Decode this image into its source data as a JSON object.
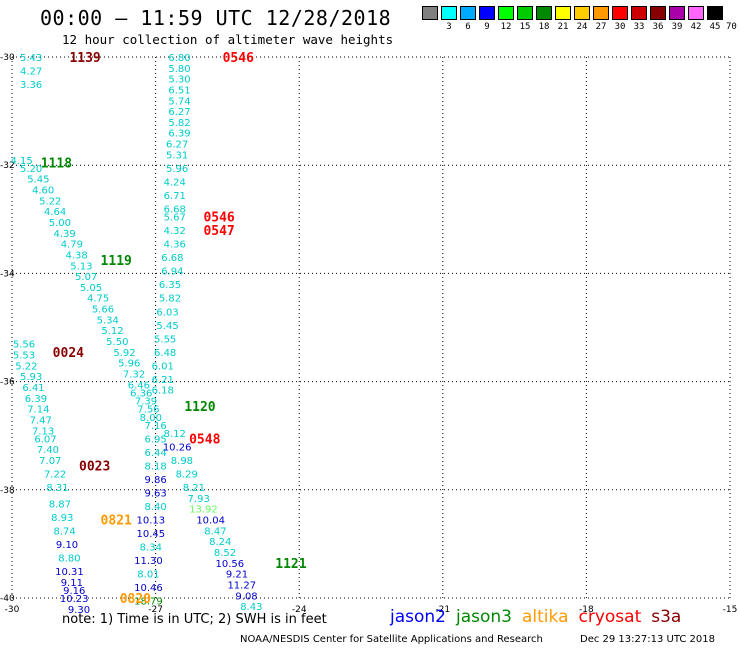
{
  "header": {
    "title": "00:00 – 11:59 UTC 12/28/2018",
    "subtitle": "12 hour collection of altimeter wave heights"
  },
  "color_scale": {
    "labels": [
      "3",
      "6",
      "9",
      "12",
      "15",
      "18",
      "21",
      "24",
      "27",
      "30",
      "33",
      "36",
      "39",
      "42",
      "45",
      "70 (ft)"
    ],
    "colors": [
      "#808080",
      "#00ffff",
      "#00aaff",
      "#0000ff",
      "#00ff00",
      "#00cc00",
      "#008800",
      "#ffff00",
      "#ffcc00",
      "#ff9900",
      "#ff0000",
      "#cc0000",
      "#880000",
      "#aa00aa",
      "#ff66ff",
      "#000000"
    ]
  },
  "footer": {
    "note": "note:  1) Time is in UTC;  2) SWH is in feet",
    "satellites": [
      {
        "name": "jason2",
        "color": "#0000ff"
      },
      {
        "name": "jason3",
        "color": "#008800"
      },
      {
        "name": "altika",
        "color": "#ff9900"
      },
      {
        "name": "cryosat",
        "color": "#ff0000"
      },
      {
        "name": "s3a",
        "color": "#880000"
      }
    ],
    "credit": "NOAA/NESDIS Center for Satellite Applications and Research",
    "timestamp": "Dec 29 13:27:13 UTC 2018"
  },
  "chart_data": {
    "type": "scatter",
    "title": "00:00 – 11:59 UTC 12/28/2018",
    "subtitle": "12 hour collection of altimeter wave heights",
    "xlim": [
      -30,
      -15
    ],
    "ylim": [
      -40,
      -30
    ],
    "x_ticks": [
      "-30",
      "-27",
      "-24",
      "-21",
      "-18",
      "-15"
    ],
    "y_ticks": [
      "-30",
      "-32",
      "-34",
      "-36",
      "-38",
      "-40"
    ],
    "grid": true,
    "tracks": [
      {
        "name": "track-a",
        "points": [
          {
            "lon": -29.6,
            "lat": -30.0,
            "v": "5.43",
            "c": "#00cccc"
          },
          {
            "lon": -29.6,
            "lat": -30.25,
            "v": "4.27",
            "c": "#00cccc"
          },
          {
            "lon": -29.6,
            "lat": -30.5,
            "v": "3.36",
            "c": "#00cccc"
          }
        ]
      },
      {
        "name": "track-b",
        "points": [
          {
            "lon": -29.8,
            "lat": -31.9,
            "v": "4.15",
            "c": "#00cccc"
          },
          {
            "lon": -29.6,
            "lat": -32.05,
            "v": "5.20",
            "c": "#00cccc"
          },
          {
            "lon": -29.45,
            "lat": -32.25,
            "v": "5.45",
            "c": "#00cccc"
          },
          {
            "lon": -29.35,
            "lat": -32.45,
            "v": "4.60",
            "c": "#00cccc"
          },
          {
            "lon": -29.2,
            "lat": -32.65,
            "v": "5.22",
            "c": "#00cccc"
          },
          {
            "lon": -29.1,
            "lat": -32.85,
            "v": "4.64",
            "c": "#00cccc"
          },
          {
            "lon": -29.0,
            "lat": -33.05,
            "v": "5.00",
            "c": "#00cccc"
          },
          {
            "lon": -28.9,
            "lat": -33.25,
            "v": "4.39",
            "c": "#00cccc"
          },
          {
            "lon": -28.75,
            "lat": -33.45,
            "v": "4.79",
            "c": "#00cccc"
          },
          {
            "lon": -28.65,
            "lat": -33.65,
            "v": "4.38",
            "c": "#00cccc"
          },
          {
            "lon": -28.55,
            "lat": -33.85,
            "v": "5.13",
            "c": "#00cccc"
          },
          {
            "lon": -28.45,
            "lat": -34.05,
            "v": "5.07",
            "c": "#00cccc"
          },
          {
            "lon": -28.35,
            "lat": -34.25,
            "v": "5.05",
            "c": "#00cccc"
          },
          {
            "lon": -28.2,
            "lat": -34.45,
            "v": "4.75",
            "c": "#00cccc"
          },
          {
            "lon": -28.1,
            "lat": -34.65,
            "v": "5.66",
            "c": "#00cccc"
          },
          {
            "lon": -28.0,
            "lat": -34.85,
            "v": "5.34",
            "c": "#00cccc"
          },
          {
            "lon": -27.9,
            "lat": -35.05,
            "v": "5.12",
            "c": "#00cccc"
          },
          {
            "lon": -27.8,
            "lat": -35.25,
            "v": "5.50",
            "c": "#00cccc"
          },
          {
            "lon": -27.65,
            "lat": -35.45,
            "v": "5.92",
            "c": "#00cccc"
          },
          {
            "lon": -27.55,
            "lat": -35.65,
            "v": "5.96",
            "c": "#00cccc"
          },
          {
            "lon": -27.45,
            "lat": -35.85,
            "v": "7.32",
            "c": "#00cccc"
          },
          {
            "lon": -27.35,
            "lat": -36.05,
            "v": "6.46",
            "c": "#00cccc"
          },
          {
            "lon": -27.3,
            "lat": -36.2,
            "v": "6.36",
            "c": "#00cccc"
          },
          {
            "lon": -27.2,
            "lat": -36.35,
            "v": "7.39",
            "c": "#00cccc"
          },
          {
            "lon": -27.15,
            "lat": -36.5,
            "v": "7.56",
            "c": "#00cccc"
          },
          {
            "lon": -27.1,
            "lat": -36.65,
            "v": "8.00",
            "c": "#00cccc"
          },
          {
            "lon": -27.0,
            "lat": -36.8,
            "v": "7.16",
            "c": "#00cccc"
          },
          {
            "lon": -27.0,
            "lat": -37.05,
            "v": "6.95",
            "c": "#00cccc"
          },
          {
            "lon": -27.0,
            "lat": -37.3,
            "v": "6.44",
            "c": "#00cccc"
          },
          {
            "lon": -27.0,
            "lat": -37.55,
            "v": "8.18",
            "c": "#00cccc"
          },
          {
            "lon": -27.0,
            "lat": -37.8,
            "v": "9.86",
            "c": "#0000cc"
          },
          {
            "lon": -27.0,
            "lat": -38.05,
            "v": "9.63",
            "c": "#0000cc"
          },
          {
            "lon": -27.0,
            "lat": -38.3,
            "v": "8.40",
            "c": "#00cccc"
          },
          {
            "lon": -27.1,
            "lat": -38.55,
            "v": "10.13",
            "c": "#0000cc"
          },
          {
            "lon": -27.1,
            "lat": -38.8,
            "v": "10.45",
            "c": "#0000cc"
          },
          {
            "lon": -27.1,
            "lat": -39.05,
            "v": "8.34",
            "c": "#00cccc"
          },
          {
            "lon": -27.15,
            "lat": -39.3,
            "v": "11.30",
            "c": "#0000cc"
          },
          {
            "lon": -27.15,
            "lat": -39.55,
            "v": "8.01",
            "c": "#00cccc"
          },
          {
            "lon": -27.15,
            "lat": -39.8,
            "v": "10.46",
            "c": "#0000cc"
          },
          {
            "lon": -27.15,
            "lat": -40.05,
            "v": "18.79",
            "c": "#008800"
          }
        ]
      },
      {
        "name": "track-c",
        "points": [
          {
            "lon": -26.5,
            "lat": -30.0,
            "v": "6.80",
            "c": "#00cccc"
          },
          {
            "lon": -26.5,
            "lat": -30.2,
            "v": "5.80",
            "c": "#00cccc"
          },
          {
            "lon": -26.5,
            "lat": -30.4,
            "v": "5.30",
            "c": "#00cccc"
          },
          {
            "lon": -26.5,
            "lat": -30.6,
            "v": "6.51",
            "c": "#00cccc"
          },
          {
            "lon": -26.5,
            "lat": -30.8,
            "v": "5.74",
            "c": "#00cccc"
          },
          {
            "lon": -26.5,
            "lat": -31.0,
            "v": "6.27",
            "c": "#00cccc"
          },
          {
            "lon": -26.5,
            "lat": -31.2,
            "v": "5.82",
            "c": "#00cccc"
          },
          {
            "lon": -26.5,
            "lat": -31.4,
            "v": "6.39",
            "c": "#00cccc"
          },
          {
            "lon": -26.55,
            "lat": -31.6,
            "v": "6.27",
            "c": "#00cccc"
          },
          {
            "lon": -26.55,
            "lat": -31.8,
            "v": "5.31",
            "c": "#00cccc"
          },
          {
            "lon": -26.55,
            "lat": -32.05,
            "v": "5.96",
            "c": "#00cccc"
          },
          {
            "lon": -26.6,
            "lat": -32.3,
            "v": "4.24",
            "c": "#00cccc"
          },
          {
            "lon": -26.6,
            "lat": -32.55,
            "v": "6.71",
            "c": "#00cccc"
          },
          {
            "lon": -26.6,
            "lat": -32.8,
            "v": "6.68",
            "c": "#00cccc"
          },
          {
            "lon": -26.6,
            "lat": -32.95,
            "v": "5.67",
            "c": "#00cccc"
          },
          {
            "lon": -26.6,
            "lat": -33.2,
            "v": "4.32",
            "c": "#00cccc"
          },
          {
            "lon": -26.6,
            "lat": -33.45,
            "v": "4.36",
            "c": "#00cccc"
          },
          {
            "lon": -26.65,
            "lat": -33.7,
            "v": "6.68",
            "c": "#00cccc"
          },
          {
            "lon": -26.65,
            "lat": -33.95,
            "v": "6.94",
            "c": "#00cccc"
          },
          {
            "lon": -26.7,
            "lat": -34.2,
            "v": "6.35",
            "c": "#00cccc"
          },
          {
            "lon": -26.7,
            "lat": -34.45,
            "v": "5.82",
            "c": "#00cccc"
          },
          {
            "lon": -26.75,
            "lat": -34.7,
            "v": "6.03",
            "c": "#00cccc"
          },
          {
            "lon": -26.75,
            "lat": -34.95,
            "v": "5.45",
            "c": "#00cccc"
          },
          {
            "lon": -26.8,
            "lat": -35.2,
            "v": "5.55",
            "c": "#00cccc"
          },
          {
            "lon": -26.8,
            "lat": -35.45,
            "v": "6.48",
            "c": "#00cccc"
          },
          {
            "lon": -26.85,
            "lat": -35.7,
            "v": "6.01",
            "c": "#00cccc"
          },
          {
            "lon": -26.85,
            "lat": -35.95,
            "v": "6.21",
            "c": "#00cccc"
          },
          {
            "lon": -26.85,
            "lat": -36.15,
            "v": "6.18",
            "c": "#00cccc"
          },
          {
            "lon": -26.6,
            "lat": -36.95,
            "v": "8.12",
            "c": "#00cccc"
          },
          {
            "lon": -26.55,
            "lat": -37.2,
            "v": "10.26",
            "c": "#0000cc"
          },
          {
            "lon": -26.45,
            "lat": -37.45,
            "v": "8.98",
            "c": "#00cccc"
          },
          {
            "lon": -26.35,
            "lat": -37.7,
            "v": "8.29",
            "c": "#00cccc"
          },
          {
            "lon": -26.2,
            "lat": -37.95,
            "v": "8.21",
            "c": "#00cccc"
          },
          {
            "lon": -26.1,
            "lat": -38.15,
            "v": "7.93",
            "c": "#00cccc"
          },
          {
            "lon": -26.0,
            "lat": -38.35,
            "v": "13.92",
            "c": "#66ff66"
          },
          {
            "lon": -25.85,
            "lat": -38.55,
            "v": "10.04",
            "c": "#0000cc"
          },
          {
            "lon": -25.75,
            "lat": -38.75,
            "v": "8.47",
            "c": "#00cccc"
          },
          {
            "lon": -25.65,
            "lat": -38.95,
            "v": "8.24",
            "c": "#00cccc"
          },
          {
            "lon": -25.55,
            "lat": -39.15,
            "v": "8.52",
            "c": "#00cccc"
          },
          {
            "lon": -25.45,
            "lat": -39.35,
            "v": "10.56",
            "c": "#0000cc"
          },
          {
            "lon": -25.3,
            "lat": -39.55,
            "v": "9.21",
            "c": "#0000cc"
          },
          {
            "lon": -25.2,
            "lat": -39.75,
            "v": "11.27",
            "c": "#0000cc"
          },
          {
            "lon": -25.1,
            "lat": -39.95,
            "v": "9.08",
            "c": "#0000cc"
          },
          {
            "lon": -25.0,
            "lat": -40.15,
            "v": "8.43",
            "c": "#00cccc"
          }
        ]
      },
      {
        "name": "track-d",
        "points": [
          {
            "lon": -29.75,
            "lat": -35.3,
            "v": "5.56",
            "c": "#00cccc"
          },
          {
            "lon": -29.75,
            "lat": -35.5,
            "v": "5.53",
            "c": "#00cccc"
          },
          {
            "lon": -29.7,
            "lat": -35.7,
            "v": "5.22",
            "c": "#00cccc"
          },
          {
            "lon": -29.6,
            "lat": -35.9,
            "v": "5.93",
            "c": "#00cccc"
          },
          {
            "lon": -29.55,
            "lat": -36.1,
            "v": "6.41",
            "c": "#00cccc"
          },
          {
            "lon": -29.5,
            "lat": -36.3,
            "v": "6.39",
            "c": "#00cccc"
          },
          {
            "lon": -29.45,
            "lat": -36.5,
            "v": "7.14",
            "c": "#00cccc"
          },
          {
            "lon": -29.4,
            "lat": -36.7,
            "v": "7.47",
            "c": "#00cccc"
          },
          {
            "lon": -29.35,
            "lat": -36.9,
            "v": "7.13",
            "c": "#00cccc"
          },
          {
            "lon": -29.3,
            "lat": -37.05,
            "v": "6.07",
            "c": "#00cccc"
          },
          {
            "lon": -29.25,
            "lat": -37.25,
            "v": "7.40",
            "c": "#00cccc"
          },
          {
            "lon": -29.2,
            "lat": -37.45,
            "v": "7.07",
            "c": "#00cccc"
          },
          {
            "lon": -29.1,
            "lat": -37.7,
            "v": "7.22",
            "c": "#00cccc"
          },
          {
            "lon": -29.05,
            "lat": -37.95,
            "v": "8.31",
            "c": "#00cccc"
          },
          {
            "lon": -29.0,
            "lat": -38.25,
            "v": "8.87",
            "c": "#00cccc"
          },
          {
            "lon": -28.95,
            "lat": -38.5,
            "v": "8.93",
            "c": "#00cccc"
          },
          {
            "lon": -28.9,
            "lat": -38.75,
            "v": "8.74",
            "c": "#00cccc"
          },
          {
            "lon": -28.85,
            "lat": -39.0,
            "v": "9.10",
            "c": "#0000cc"
          },
          {
            "lon": -28.8,
            "lat": -39.25,
            "v": "8.80",
            "c": "#00cccc"
          },
          {
            "lon": -28.8,
            "lat": -39.5,
            "v": "10.31",
            "c": "#0000cc"
          },
          {
            "lon": -28.75,
            "lat": -39.7,
            "v": "9.11",
            "c": "#0000cc"
          },
          {
            "lon": -28.7,
            "lat": -39.85,
            "v": "9.16",
            "c": "#0000cc"
          },
          {
            "lon": -28.7,
            "lat": -40.0,
            "v": "10.23",
            "c": "#0000cc"
          },
          {
            "lon": -28.6,
            "lat": -40.2,
            "v": "9.30",
            "c": "#0000cc"
          }
        ]
      }
    ],
    "pass_labels": [
      {
        "lon": -28.8,
        "lat": -30.0,
        "text": "1139",
        "c": "#880000"
      },
      {
        "lon": -29.4,
        "lat": -31.95,
        "text": "1118",
        "c": "#008800"
      },
      {
        "lon": -28.15,
        "lat": -33.75,
        "text": "1119",
        "c": "#008800"
      },
      {
        "lon": -25.6,
        "lat": -30.0,
        "text": "0546",
        "c": "#ff0000"
      },
      {
        "lon": -26.0,
        "lat": -32.95,
        "text": "0546",
        "c": "#ff0000"
      },
      {
        "lon": -26.0,
        "lat": -33.2,
        "text": "0547",
        "c": "#ff0000"
      },
      {
        "lon": -29.15,
        "lat": -35.45,
        "text": "0024",
        "c": "#880000"
      },
      {
        "lon": -26.4,
        "lat": -36.45,
        "text": "1120",
        "c": "#008800"
      },
      {
        "lon": -26.3,
        "lat": -37.05,
        "text": "0548",
        "c": "#ff0000"
      },
      {
        "lon": -28.6,
        "lat": -37.55,
        "text": "0023",
        "c": "#880000"
      },
      {
        "lon": -28.15,
        "lat": -38.55,
        "text": "0821",
        "c": "#ff9900"
      },
      {
        "lon": -27.75,
        "lat": -40.0,
        "text": "0820",
        "c": "#ff9900"
      },
      {
        "lon": -24.5,
        "lat": -39.35,
        "text": "1121",
        "c": "#008800"
      }
    ]
  }
}
